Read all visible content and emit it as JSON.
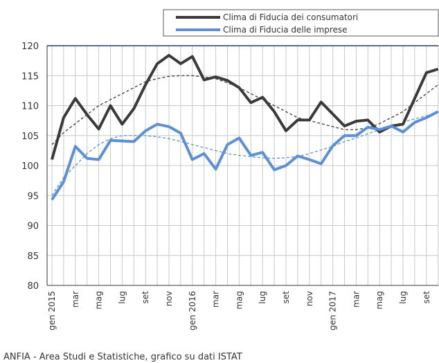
{
  "chart_data": {
    "type": "line",
    "categories": [
      "gen 2015",
      null,
      "mar",
      null,
      "mag",
      null,
      "lug",
      null,
      "set",
      null,
      "nov",
      null,
      "gen 2016",
      null,
      "mar",
      null,
      "mag",
      null,
      "lug",
      null,
      "set",
      null,
      "nov",
      null,
      "gen 2017",
      null,
      "mar",
      null,
      "mag",
      null,
      "lug",
      null,
      "set",
      null
    ],
    "series": [
      {
        "name": "Clima di Fiducia dei consumatori",
        "color": "#3a3a3a",
        "values": [
          101,
          108,
          111.2,
          108.5,
          106.1,
          110,
          106.9,
          109.5,
          113.5,
          117,
          118.4,
          117,
          118.2,
          114.3,
          114.8,
          114.2,
          113,
          110.5,
          111.4,
          109,
          105.8,
          107.6,
          107.6,
          110.6,
          108.6,
          106.6,
          107.4,
          107.6,
          105.6,
          106.6,
          106.9,
          111.2,
          115.5,
          116.1
        ]
      },
      {
        "name": "Clima di Fiducia delle imprese",
        "color": "#5b8fd6",
        "values": [
          94.3,
          97.3,
          103.2,
          101.2,
          101,
          104.2,
          104.1,
          104,
          105.8,
          106.9,
          106.5,
          105.4,
          101,
          102,
          99.4,
          103.5,
          104.6,
          101.7,
          102.2,
          99.3,
          100,
          101.6,
          101,
          100.3,
          103.3,
          105,
          105,
          106.4,
          106,
          106.6,
          105.6,
          107.2,
          108,
          109
        ]
      }
    ],
    "trendlines": [
      {
        "color": "#3a3a3a",
        "values": [
          103.5,
          105.5,
          107,
          108.5,
          110,
          111,
          112,
          113,
          114,
          114.5,
          114.9,
          115,
          115,
          114.8,
          114.5,
          113.8,
          113,
          112,
          111,
          110,
          109,
          108,
          107.5,
          107,
          106.5,
          106,
          106,
          106.3,
          107,
          108,
          109,
          110.5,
          112,
          113.5
        ]
      },
      {
        "color": "#5b8fd6",
        "values": [
          95,
          98,
          100,
          102,
          103.5,
          104.5,
          105,
          105,
          105,
          104.8,
          104.5,
          104,
          103.5,
          103,
          102.5,
          102,
          101.7,
          101.5,
          101.3,
          101.2,
          101.3,
          101.5,
          102,
          102.6,
          103.2,
          104,
          104.6,
          105.3,
          106,
          106.6,
          107.2,
          107.8,
          108.3,
          108.8
        ]
      }
    ],
    "ylim": [
      80,
      120
    ],
    "yticks": [
      80,
      85,
      90,
      95,
      100,
      105,
      110,
      115,
      120
    ],
    "grid": true,
    "source": "ANFIA - Area Studi e Statistiche, grafico su dati ISTAT"
  }
}
